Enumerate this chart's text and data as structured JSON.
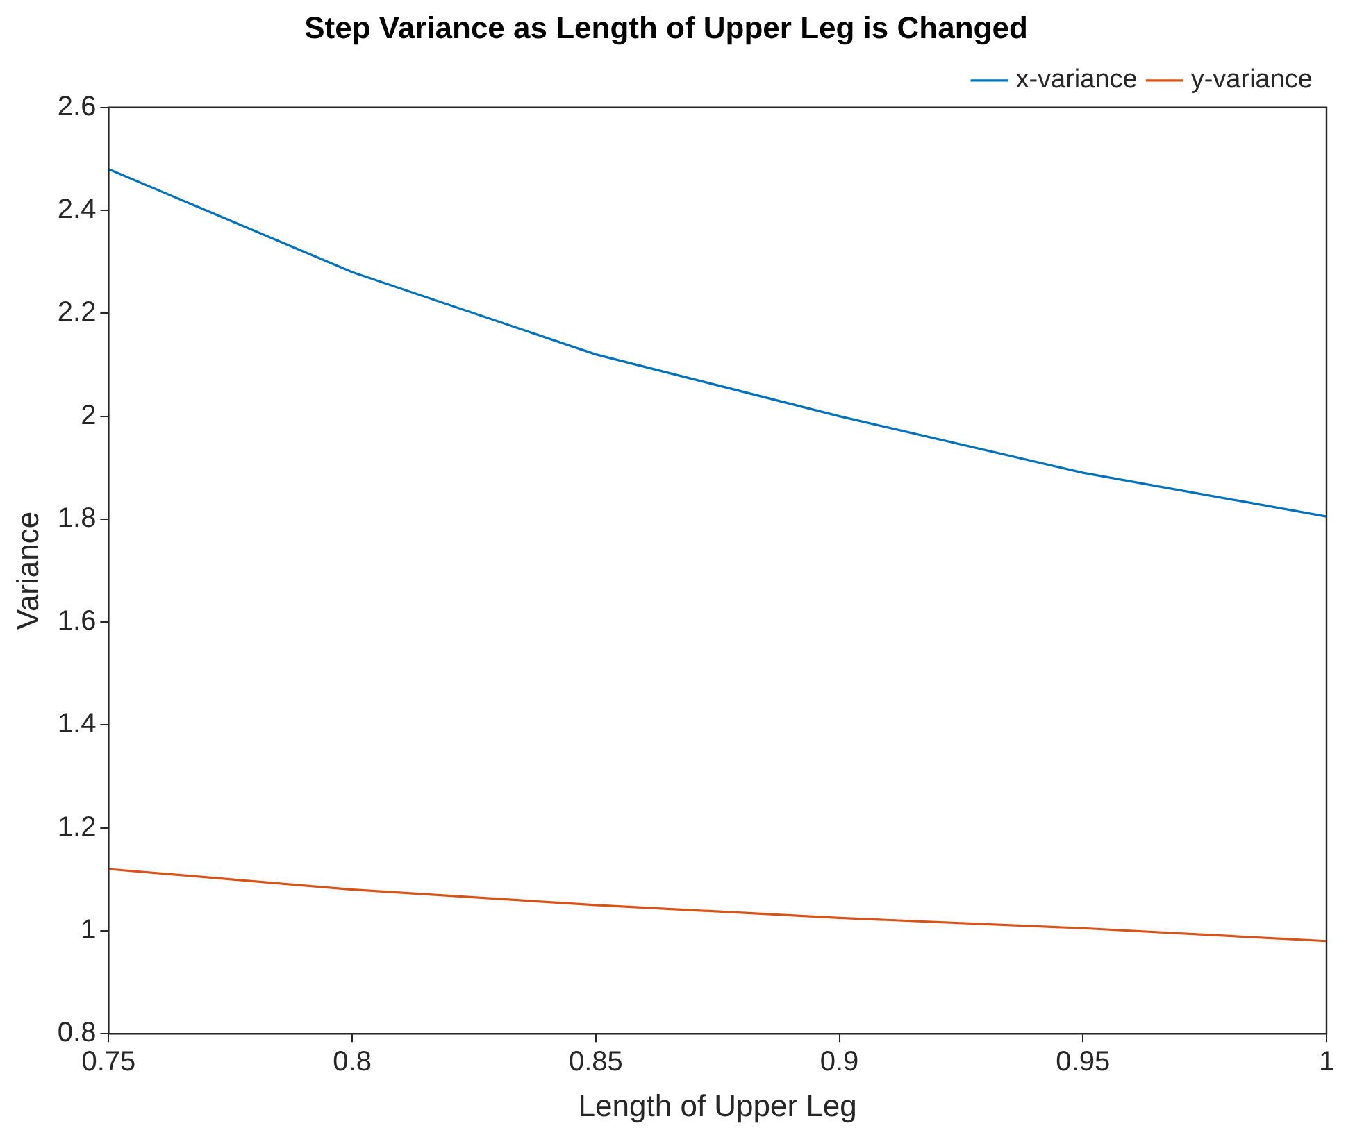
{
  "chart_data": {
    "type": "line",
    "title": "Step Variance as Length of Upper Leg is Changed",
    "xlabel": "Length of Upper Leg",
    "ylabel": "Variance",
    "x": [
      0.75,
      0.8,
      0.85,
      0.9,
      0.95,
      1
    ],
    "series": [
      {
        "name": "x-variance",
        "color": "#0072bd",
        "values": [
          2.48,
          2.28,
          2.12,
          2.0,
          1.89,
          1.805
        ]
      },
      {
        "name": "y-variance",
        "color": "#d95319",
        "values": [
          1.12,
          1.08,
          1.05,
          1.025,
          1.005,
          0.98
        ]
      }
    ],
    "xlim": [
      0.75,
      1
    ],
    "xticks": [
      0.75,
      0.8,
      0.85,
      0.9,
      0.95,
      1
    ],
    "ylim": [
      0.8,
      2.6
    ],
    "yticks": [
      0.8,
      1,
      1.2,
      1.4,
      1.6,
      1.8,
      2,
      2.2,
      2.4,
      2.6
    ],
    "grid": false,
    "legend": "top right",
    "marker": "none",
    "line_style": "solid"
  }
}
